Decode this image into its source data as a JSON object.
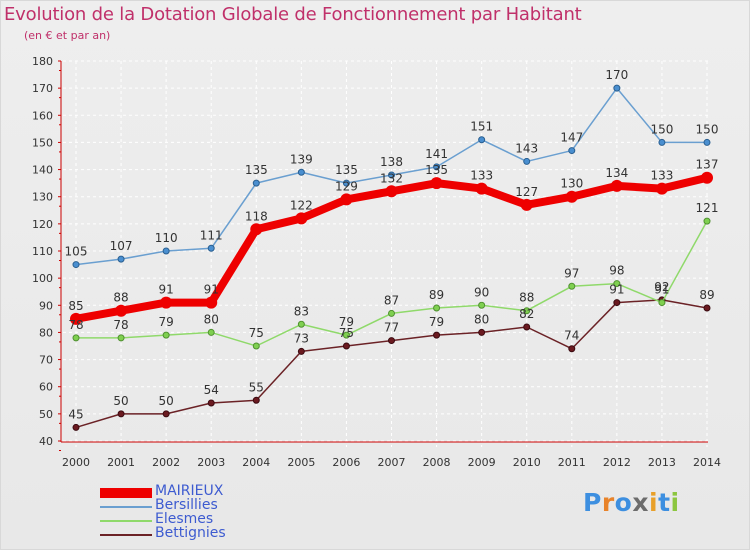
{
  "header": {
    "title": "Evolution de la Dotation Globale de Fonctionnement par Habitant",
    "subtitle": "(en € et par an)"
  },
  "logo": {
    "text": "Proxiti"
  },
  "chart_data": {
    "type": "line",
    "title": "Evolution de la Dotation Globale de Fonctionnement par Habitant",
    "subtitle": "(en € et par an)",
    "xlabel": "",
    "ylabel": "",
    "x": [
      "2000",
      "2001",
      "2002",
      "2003",
      "2004",
      "2005",
      "2006",
      "2007",
      "2008",
      "2009",
      "2010",
      "2011",
      "2012",
      "2013",
      "2014"
    ],
    "ylim": [
      40,
      180
    ],
    "yticks": [
      40,
      50,
      60,
      70,
      80,
      90,
      100,
      110,
      120,
      130,
      140,
      150,
      160,
      170,
      180
    ],
    "grid": true,
    "legend_position": "bottom-left",
    "series": [
      {
        "name": "MAIRIEUX",
        "color": "#ee0000",
        "values": [
          85,
          88,
          91,
          91,
          118,
          122,
          129,
          132,
          135,
          133,
          127,
          130,
          134,
          133,
          137
        ]
      },
      {
        "name": "Bersillies",
        "color": "#6a9fd0",
        "values": [
          105,
          107,
          110,
          111,
          135,
          139,
          135,
          138,
          141,
          151,
          143,
          147,
          170,
          150,
          150
        ]
      },
      {
        "name": "Elesmes",
        "color": "#8fd96a",
        "values": [
          78,
          78,
          79,
          80,
          75,
          83,
          79,
          87,
          89,
          90,
          88,
          97,
          98,
          91,
          121
        ]
      },
      {
        "name": "Bettignies",
        "color": "#6b2226",
        "values": [
          45,
          50,
          50,
          54,
          55,
          73,
          75,
          77,
          79,
          80,
          82,
          74,
          91,
          92,
          89
        ]
      }
    ]
  }
}
